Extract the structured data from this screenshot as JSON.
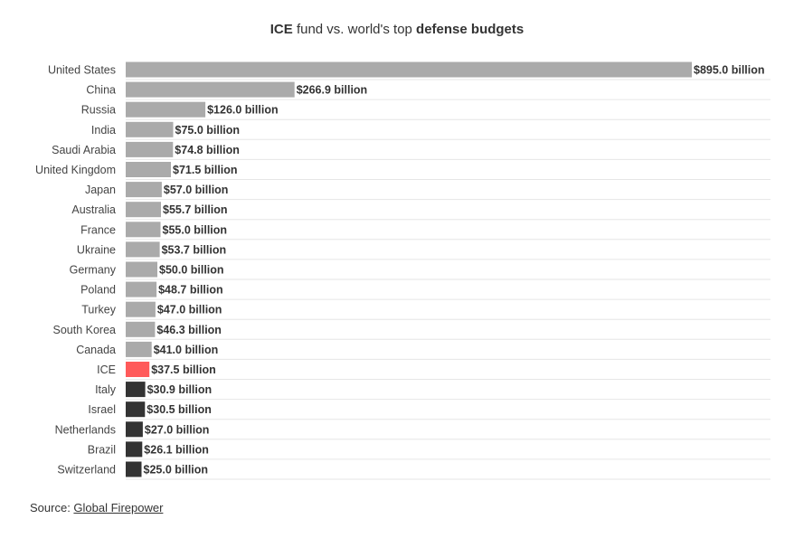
{
  "title": {
    "part1_bold": "ICE",
    "part2": " fund vs. world's top ",
    "part3_bold": "defense budgets"
  },
  "source": {
    "label": "Source: ",
    "link_text": "Global Firepower"
  },
  "colors": {
    "default": "#aaaaaa",
    "highlight": "#ff5a5a",
    "dark": "#333333",
    "grid": "#e6e6e6"
  },
  "chart_data": {
    "type": "bar",
    "orientation": "horizontal",
    "title": "ICE fund vs. world's top defense budgets",
    "xlabel": "",
    "ylabel": "",
    "unit": "billion USD",
    "xlim": [
      0,
      895
    ],
    "categories": [
      "United States",
      "China",
      "Russia",
      "India",
      "Saudi Arabia",
      "United Kingdom",
      "Japan",
      "Australia",
      "France",
      "Ukraine",
      "Germany",
      "Poland",
      "Turkey",
      "South Korea",
      "Canada",
      "ICE",
      "Italy",
      "Israel",
      "Netherlands",
      "Brazil",
      "Switzerland"
    ],
    "values": [
      895.0,
      266.9,
      126.0,
      75.0,
      74.8,
      71.5,
      57.0,
      55.7,
      55.0,
      53.7,
      50.0,
      48.7,
      47.0,
      46.3,
      41.0,
      37.5,
      30.9,
      30.5,
      27.0,
      26.1,
      25.0
    ],
    "labels": [
      "$895.0 billion",
      "$266.9 billion",
      "$126.0 billion",
      "$75.0 billion",
      "$74.8 billion",
      "$71.5 billion",
      "$57.0 billion",
      "$55.7 billion",
      "$55.0 billion",
      "$53.7 billion",
      "$50.0 billion",
      "$48.7 billion",
      "$47.0 billion",
      "$46.3 billion",
      "$41.0 billion",
      "$37.5 billion",
      "$30.9 billion",
      "$30.5 billion",
      "$27.0 billion",
      "$26.1 billion",
      "$25.0 billion"
    ],
    "bar_colors": [
      "default",
      "default",
      "default",
      "default",
      "default",
      "default",
      "default",
      "default",
      "default",
      "default",
      "default",
      "default",
      "default",
      "default",
      "default",
      "highlight",
      "dark",
      "dark",
      "dark",
      "dark",
      "dark"
    ]
  }
}
